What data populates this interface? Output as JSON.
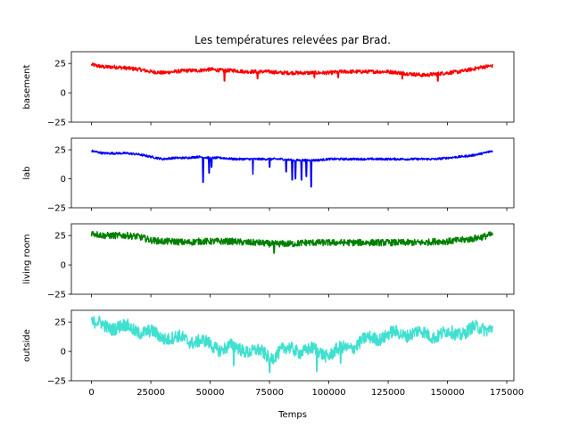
{
  "chart_data": {
    "type": "line",
    "title": "Les températures relevées par Brad.",
    "xlabel": "Temps",
    "xlim": [
      -8500,
      178000
    ],
    "xticks": [
      0,
      25000,
      50000,
      75000,
      100000,
      125000,
      150000,
      175000
    ],
    "xtick_labels": [
      "0",
      "25000",
      "50000",
      "75000",
      "100000",
      "125000",
      "150000",
      "175000"
    ],
    "ylim": [
      -25,
      35
    ],
    "yticks": [
      -25,
      0,
      25
    ],
    "ytick_labels": [
      "−25",
      "0",
      "25"
    ],
    "grid": false,
    "legend": "none",
    "shared_x": true,
    "subplots": [
      {
        "ylabel": "basement",
        "color": "#ff0000",
        "series": [
          {
            "values": [
              [
                0,
                24
              ],
              [
                5000,
                22
              ],
              [
                10000,
                22
              ],
              [
                15000,
                21
              ],
              [
                20000,
                20
              ],
              [
                25000,
                18
              ],
              [
                30000,
                17
              ],
              [
                35000,
                18
              ],
              [
                40000,
                19
              ],
              [
                45000,
                19
              ],
              [
                50000,
                20
              ],
              [
                55000,
                19
              ],
              [
                60000,
                19
              ],
              [
                65000,
                18
              ],
              [
                70000,
                18
              ],
              [
                75000,
                18
              ],
              [
                80000,
                17
              ],
              [
                85000,
                17
              ],
              [
                90000,
                17
              ],
              [
                95000,
                17
              ],
              [
                100000,
                17
              ],
              [
                105000,
                18
              ],
              [
                110000,
                18
              ],
              [
                115000,
                18
              ],
              [
                120000,
                18
              ],
              [
                125000,
                18
              ],
              [
                130000,
                17
              ],
              [
                135000,
                16
              ],
              [
                140000,
                15
              ],
              [
                145000,
                16
              ],
              [
                150000,
                17
              ],
              [
                155000,
                18
              ],
              [
                160000,
                20
              ],
              [
                165000,
                22
              ],
              [
                169000,
                23
              ]
            ]
          }
        ],
        "annotations_dips": [
          [
            56000,
            10
          ],
          [
            70000,
            12
          ],
          [
            94000,
            13
          ],
          [
            104000,
            13
          ],
          [
            131000,
            12
          ],
          [
            146000,
            10
          ]
        ]
      },
      {
        "ylabel": "lab",
        "color": "#0000ff",
        "series": [
          {
            "values": [
              [
                0,
                24
              ],
              [
                5000,
                22
              ],
              [
                10000,
                22
              ],
              [
                15000,
                22
              ],
              [
                20000,
                21
              ],
              [
                25000,
                19
              ],
              [
                30000,
                17
              ],
              [
                35000,
                18
              ],
              [
                40000,
                18
              ],
              [
                45000,
                19
              ],
              [
                50000,
                18
              ],
              [
                55000,
                18
              ],
              [
                60000,
                17
              ],
              [
                65000,
                17
              ],
              [
                70000,
                17
              ],
              [
                75000,
                17
              ],
              [
                80000,
                17
              ],
              [
                85000,
                16
              ],
              [
                90000,
                16
              ],
              [
                95000,
                16
              ],
              [
                100000,
                17
              ],
              [
                105000,
                17
              ],
              [
                110000,
                17
              ],
              [
                115000,
                17
              ],
              [
                120000,
                17
              ],
              [
                125000,
                17
              ],
              [
                130000,
                17
              ],
              [
                135000,
                17
              ],
              [
                140000,
                17
              ],
              [
                145000,
                17
              ],
              [
                150000,
                18
              ],
              [
                155000,
                19
              ],
              [
                160000,
                20
              ],
              [
                165000,
                22
              ],
              [
                169000,
                24
              ]
            ]
          }
        ],
        "annotations_dips": [
          [
            47000,
            -3
          ],
          [
            49500,
            5
          ],
          [
            50500,
            10
          ],
          [
            68000,
            4
          ],
          [
            75000,
            10
          ],
          [
            82000,
            6
          ],
          [
            84500,
            -1
          ],
          [
            86000,
            0
          ],
          [
            88500,
            -1
          ],
          [
            90500,
            2
          ],
          [
            92500,
            -7
          ]
        ]
      },
      {
        "ylabel": "living room",
        "color": "#008000",
        "series": [
          {
            "values": [
              [
                0,
                27
              ],
              [
                5000,
                25
              ],
              [
                10000,
                25
              ],
              [
                15000,
                25
              ],
              [
                20000,
                24
              ],
              [
                25000,
                21
              ],
              [
                30000,
                20
              ],
              [
                35000,
                20
              ],
              [
                40000,
                19
              ],
              [
                45000,
                20
              ],
              [
                50000,
                20
              ],
              [
                55000,
                20
              ],
              [
                60000,
                20
              ],
              [
                65000,
                19
              ],
              [
                70000,
                19
              ],
              [
                75000,
                18
              ],
              [
                80000,
                18
              ],
              [
                85000,
                18
              ],
              [
                90000,
                19
              ],
              [
                95000,
                19
              ],
              [
                100000,
                19
              ],
              [
                105000,
                19
              ],
              [
                110000,
                19
              ],
              [
                115000,
                19
              ],
              [
                120000,
                19
              ],
              [
                125000,
                19
              ],
              [
                130000,
                19
              ],
              [
                135000,
                19
              ],
              [
                140000,
                19
              ],
              [
                145000,
                20
              ],
              [
                150000,
                20
              ],
              [
                155000,
                21
              ],
              [
                160000,
                22
              ],
              [
                165000,
                24
              ],
              [
                169000,
                26
              ]
            ]
          }
        ],
        "annotations_dips": [
          [
            77000,
            10
          ]
        ]
      },
      {
        "ylabel": "outside",
        "color": "#40e0d0",
        "series": [
          {
            "values": [
              [
                0,
                24
              ],
              [
                5000,
                22
              ],
              [
                10000,
                21
              ],
              [
                15000,
                20
              ],
              [
                20000,
                18
              ],
              [
                25000,
                15
              ],
              [
                30000,
                13
              ],
              [
                35000,
                11
              ],
              [
                40000,
                10
              ],
              [
                45000,
                9
              ],
              [
                50000,
                5
              ],
              [
                55000,
                3
              ],
              [
                60000,
                3
              ],
              [
                65000,
                2
              ],
              [
                70000,
                -1
              ],
              [
                75000,
                -4
              ],
              [
                80000,
                0
              ],
              [
                85000,
                2
              ],
              [
                90000,
                1
              ],
              [
                95000,
                0
              ],
              [
                100000,
                -2
              ],
              [
                105000,
                1
              ],
              [
                110000,
                5
              ],
              [
                115000,
                9
              ],
              [
                120000,
                12
              ],
              [
                125000,
                14
              ],
              [
                130000,
                15
              ],
              [
                135000,
                16
              ],
              [
                140000,
                15
              ],
              [
                145000,
                14
              ],
              [
                150000,
                15
              ],
              [
                155000,
                16
              ],
              [
                160000,
                18
              ],
              [
                165000,
                20
              ],
              [
                169000,
                21
              ]
            ]
          }
        ],
        "annotations_dips": [
          [
            75000,
            -18
          ],
          [
            95000,
            -17
          ],
          [
            60000,
            -12
          ],
          [
            105000,
            -10
          ]
        ]
      }
    ]
  }
}
